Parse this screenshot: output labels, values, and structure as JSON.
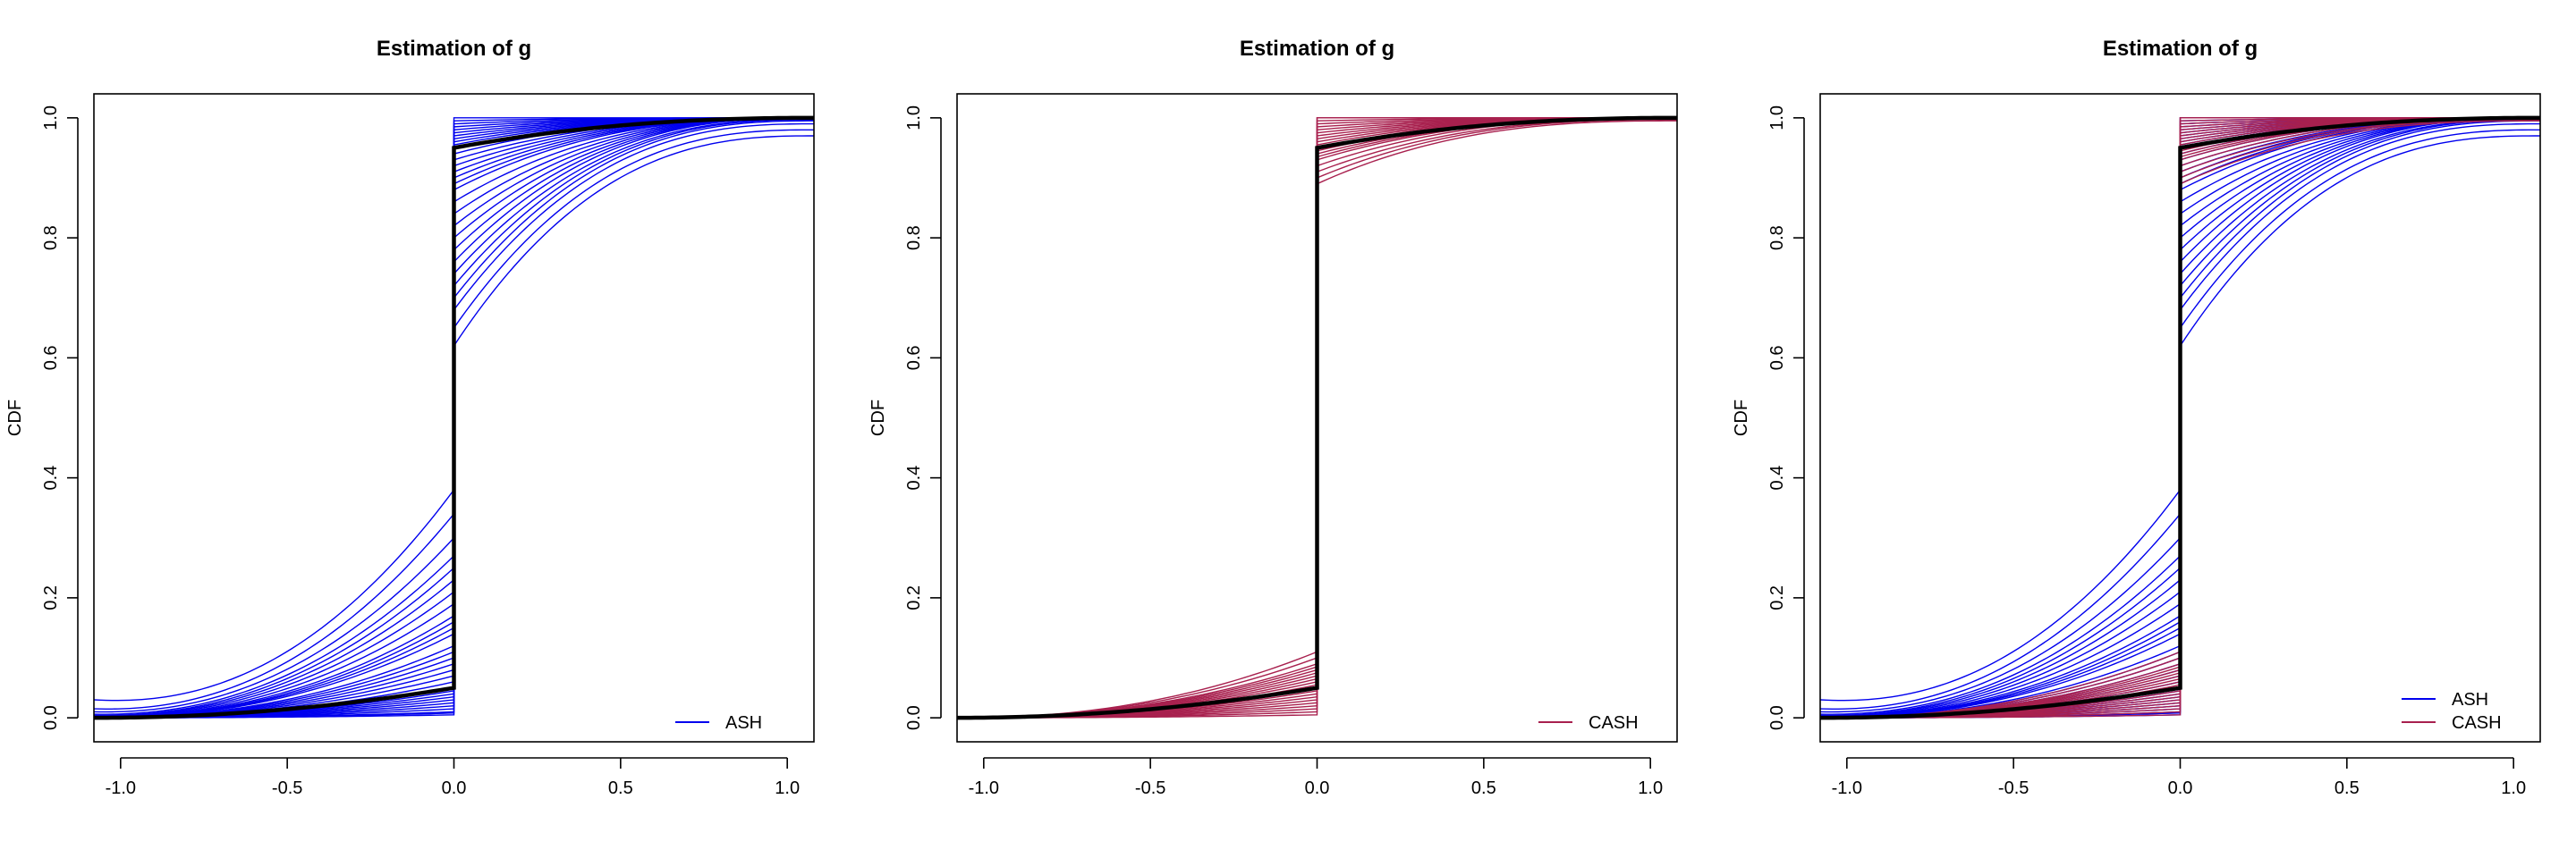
{
  "colors": {
    "ash": "#0000ee",
    "cash": "#a8204e",
    "truth": "#000000"
  },
  "chart_data": [
    {
      "type": "line",
      "title": "Estimation of g",
      "xlabel": "",
      "ylabel": "CDF",
      "xlim": [
        -1.08,
        1.08
      ],
      "ylim": [
        -0.04,
        1.04
      ],
      "xticks": [
        -1.0,
        -0.5,
        0.0,
        0.5,
        1.0
      ],
      "xtick_labels": [
        "-1.0",
        "-0.5",
        "0.0",
        "0.5",
        "1.0"
      ],
      "yticks": [
        0.0,
        0.2,
        0.4,
        0.6,
        0.8,
        1.0
      ],
      "ytick_labels": [
        "0.0",
        "0.2",
        "0.4",
        "0.6",
        "0.8",
        "1.0"
      ],
      "legend": {
        "position": "bottom-right",
        "entries": [
          {
            "label": "ASH",
            "color": "#0000ee"
          }
        ]
      },
      "true_curve": {
        "mass_at_zero": 0.9,
        "left_value_at_minus1": 0.0,
        "right_value_at_0": 0.95
      },
      "series": [
        {
          "color": "#0000ee",
          "left_tail_values_at_0": [
            0.38,
            0.34,
            0.3,
            0.27,
            0.25,
            0.23,
            0.21,
            0.19,
            0.17,
            0.16,
            0.15,
            0.14,
            0.12,
            0.11,
            0.1,
            0.09,
            0.08,
            0.07,
            0.06,
            0.05,
            0.045,
            0.04,
            0.035,
            0.03,
            0.025,
            0.02,
            0.015,
            0.01,
            0.008,
            0.005
          ],
          "left_tail_values_at_minus1": [
            0.03,
            0.015,
            0.01,
            0.006,
            0.004,
            0.003,
            0.002,
            0.001,
            0.001,
            0.0,
            0.0,
            0.0,
            0.0,
            0.0,
            0.0,
            0.0,
            0.0,
            0.0,
            0.0,
            0.0,
            0.0,
            0.0,
            0.0,
            0.0,
            0.0,
            0.0,
            0.0,
            0.0,
            0.0,
            0.0
          ],
          "right_tail_values_at_0": [
            0.62,
            0.65,
            0.68,
            0.7,
            0.72,
            0.74,
            0.76,
            0.78,
            0.8,
            0.82,
            0.84,
            0.86,
            0.88,
            0.89,
            0.9,
            0.91,
            0.92,
            0.93,
            0.94,
            0.95,
            0.955,
            0.96,
            0.965,
            0.97,
            0.975,
            0.98,
            0.985,
            0.99,
            0.995,
            1.0
          ],
          "right_tail_values_at_1": [
            0.97,
            0.98,
            0.99,
            0.995,
            0.997,
            0.998,
            0.999,
            1.0,
            1.0,
            1.0,
            1.0,
            1.0,
            1.0,
            1.0,
            1.0,
            1.0,
            1.0,
            1.0,
            1.0,
            1.0,
            1.0,
            1.0,
            1.0,
            1.0,
            1.0,
            1.0,
            1.0,
            1.0,
            1.0,
            1.0
          ]
        }
      ]
    },
    {
      "type": "line",
      "title": "Estimation of g",
      "xlabel": "",
      "ylabel": "CDF",
      "xlim": [
        -1.08,
        1.08
      ],
      "ylim": [
        -0.04,
        1.04
      ],
      "xticks": [
        -1.0,
        -0.5,
        0.0,
        0.5,
        1.0
      ],
      "xtick_labels": [
        "-1.0",
        "-0.5",
        "0.0",
        "0.5",
        "1.0"
      ],
      "yticks": [
        0.0,
        0.2,
        0.4,
        0.6,
        0.8,
        1.0
      ],
      "ytick_labels": [
        "0.0",
        "0.2",
        "0.4",
        "0.6",
        "0.8",
        "1.0"
      ],
      "legend": {
        "position": "bottom-right",
        "entries": [
          {
            "label": "CASH",
            "color": "#a8204e"
          }
        ]
      },
      "true_curve": {
        "mass_at_zero": 0.9,
        "left_value_at_minus1": 0.0,
        "right_value_at_0": 0.95
      },
      "series": [
        {
          "color": "#a8204e",
          "left_tail_values_at_0": [
            0.11,
            0.1,
            0.09,
            0.085,
            0.08,
            0.075,
            0.07,
            0.065,
            0.06,
            0.055,
            0.05,
            0.045,
            0.04,
            0.035,
            0.03,
            0.025,
            0.02,
            0.015,
            0.01,
            0.005
          ],
          "left_tail_values_at_minus1": [
            0.0,
            0.0,
            0.0,
            0.0,
            0.0,
            0.0,
            0.0,
            0.0,
            0.0,
            0.0,
            0.0,
            0.0,
            0.0,
            0.0,
            0.0,
            0.0,
            0.0,
            0.0,
            0.0,
            0.0
          ],
          "right_tail_values_at_0": [
            0.89,
            0.9,
            0.91,
            0.92,
            0.93,
            0.935,
            0.94,
            0.945,
            0.95,
            0.955,
            0.96,
            0.965,
            0.97,
            0.975,
            0.98,
            0.985,
            0.99,
            0.995,
            1.0,
            1.0
          ],
          "right_tail_values_at_1": [
            0.995,
            0.997,
            0.998,
            0.999,
            1.0,
            1.0,
            1.0,
            1.0,
            1.0,
            1.0,
            1.0,
            1.0,
            1.0,
            1.0,
            1.0,
            1.0,
            1.0,
            1.0,
            1.0,
            1.0
          ]
        }
      ]
    },
    {
      "type": "line",
      "title": "Estimation of g",
      "xlabel": "",
      "ylabel": "CDF",
      "xlim": [
        -1.08,
        1.08
      ],
      "ylim": [
        -0.04,
        1.04
      ],
      "xticks": [
        -1.0,
        -0.5,
        0.0,
        0.5,
        1.0
      ],
      "xtick_labels": [
        "-1.0",
        "-0.5",
        "0.0",
        "0.5",
        "1.0"
      ],
      "yticks": [
        0.0,
        0.2,
        0.4,
        0.6,
        0.8,
        1.0
      ],
      "ytick_labels": [
        "0.0",
        "0.2",
        "0.4",
        "0.6",
        "0.8",
        "1.0"
      ],
      "legend": {
        "position": "bottom-right",
        "entries": [
          {
            "label": "ASH",
            "color": "#0000ee"
          },
          {
            "label": "CASH",
            "color": "#a8204e"
          }
        ]
      },
      "true_curve": {
        "mass_at_zero": 0.9,
        "left_value_at_minus1": 0.0,
        "right_value_at_0": 0.95
      },
      "series": [
        {
          "color": "#0000ee",
          "left_tail_values_at_0": [
            0.38,
            0.34,
            0.3,
            0.27,
            0.25,
            0.23,
            0.21,
            0.19,
            0.17,
            0.16,
            0.15,
            0.14,
            0.12,
            0.11,
            0.1,
            0.09,
            0.08,
            0.07,
            0.06,
            0.05,
            0.045,
            0.04,
            0.035,
            0.03,
            0.025,
            0.02,
            0.015,
            0.01,
            0.008,
            0.005
          ],
          "left_tail_values_at_minus1": [
            0.03,
            0.015,
            0.01,
            0.006,
            0.004,
            0.003,
            0.002,
            0.001,
            0.001,
            0.0,
            0.0,
            0.0,
            0.0,
            0.0,
            0.0,
            0.0,
            0.0,
            0.0,
            0.0,
            0.0,
            0.0,
            0.0,
            0.0,
            0.0,
            0.0,
            0.0,
            0.0,
            0.0,
            0.0,
            0.0
          ],
          "right_tail_values_at_0": [
            0.62,
            0.65,
            0.68,
            0.7,
            0.72,
            0.74,
            0.76,
            0.78,
            0.8,
            0.82,
            0.84,
            0.86,
            0.88,
            0.89,
            0.9,
            0.91,
            0.92,
            0.93,
            0.94,
            0.95,
            0.955,
            0.96,
            0.965,
            0.97,
            0.975,
            0.98,
            0.985,
            0.99,
            0.995,
            1.0
          ],
          "right_tail_values_at_1": [
            0.97,
            0.98,
            0.99,
            0.995,
            0.997,
            0.998,
            0.999,
            1.0,
            1.0,
            1.0,
            1.0,
            1.0,
            1.0,
            1.0,
            1.0,
            1.0,
            1.0,
            1.0,
            1.0,
            1.0,
            1.0,
            1.0,
            1.0,
            1.0,
            1.0,
            1.0,
            1.0,
            1.0,
            1.0,
            1.0
          ]
        },
        {
          "color": "#a8204e",
          "left_tail_values_at_0": [
            0.11,
            0.1,
            0.09,
            0.085,
            0.08,
            0.075,
            0.07,
            0.065,
            0.06,
            0.055,
            0.05,
            0.045,
            0.04,
            0.035,
            0.03,
            0.025,
            0.02,
            0.015,
            0.01,
            0.005
          ],
          "left_tail_values_at_minus1": [
            0.0,
            0.0,
            0.0,
            0.0,
            0.0,
            0.0,
            0.0,
            0.0,
            0.0,
            0.0,
            0.0,
            0.0,
            0.0,
            0.0,
            0.0,
            0.0,
            0.0,
            0.0,
            0.0,
            0.0
          ],
          "right_tail_values_at_0": [
            0.89,
            0.9,
            0.91,
            0.92,
            0.93,
            0.935,
            0.94,
            0.945,
            0.95,
            0.955,
            0.96,
            0.965,
            0.97,
            0.975,
            0.98,
            0.985,
            0.99,
            0.995,
            1.0,
            1.0
          ],
          "right_tail_values_at_1": [
            0.995,
            0.997,
            0.998,
            0.999,
            1.0,
            1.0,
            1.0,
            1.0,
            1.0,
            1.0,
            1.0,
            1.0,
            1.0,
            1.0,
            1.0,
            1.0,
            1.0,
            1.0,
            1.0,
            1.0
          ]
        }
      ]
    }
  ]
}
